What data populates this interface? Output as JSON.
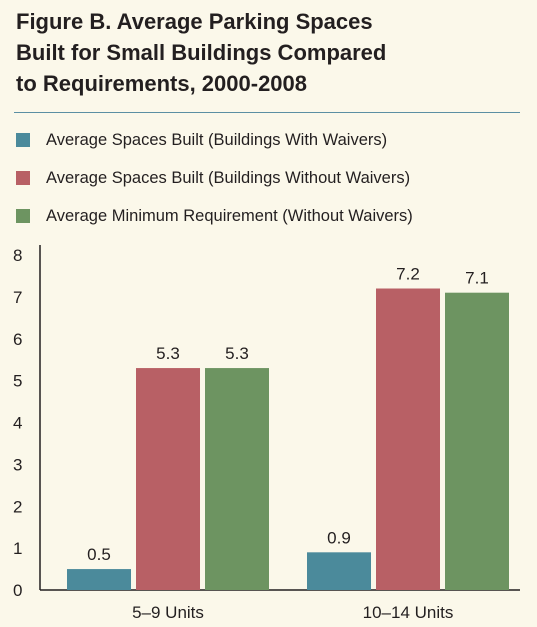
{
  "title_lines": [
    "Figure B. Average Parking Spaces",
    "Built for Small Buildings Compared",
    "to Requirements, 2000-2008"
  ],
  "colors": {
    "background": "#fbf8ea",
    "rule": "#5b8fa3",
    "axis": "#231f20"
  },
  "chart_data": {
    "type": "bar",
    "title": "Figure B. Average Parking Spaces Built for Small Buildings Compared to Requirements, 2000-2008",
    "categories": [
      "5–9 Units",
      "10–14 Units"
    ],
    "series": [
      {
        "name": "Average Spaces Built (Buildings With Waivers)",
        "values": [
          0.5,
          0.9
        ],
        "labels": [
          "0.5",
          "0.9"
        ],
        "color": "#4b8a9b"
      },
      {
        "name": "Average Spaces Built (Buildings Without Waivers)",
        "values": [
          5.3,
          7.2
        ],
        "labels": [
          "5.3",
          "7.2"
        ],
        "color": "#b86065"
      },
      {
        "name": "Average Minimum Requirement (Without Waivers)",
        "values": [
          5.3,
          7.1
        ],
        "labels": [
          "5.3",
          "7.1"
        ],
        "color": "#6d9461"
      }
    ],
    "yticks": [
      "0",
      "1",
      "2",
      "3",
      "4",
      "5",
      "6",
      "7",
      "8"
    ],
    "ylim": [
      0,
      8
    ],
    "grid": false,
    "legend_position": "top-left"
  }
}
